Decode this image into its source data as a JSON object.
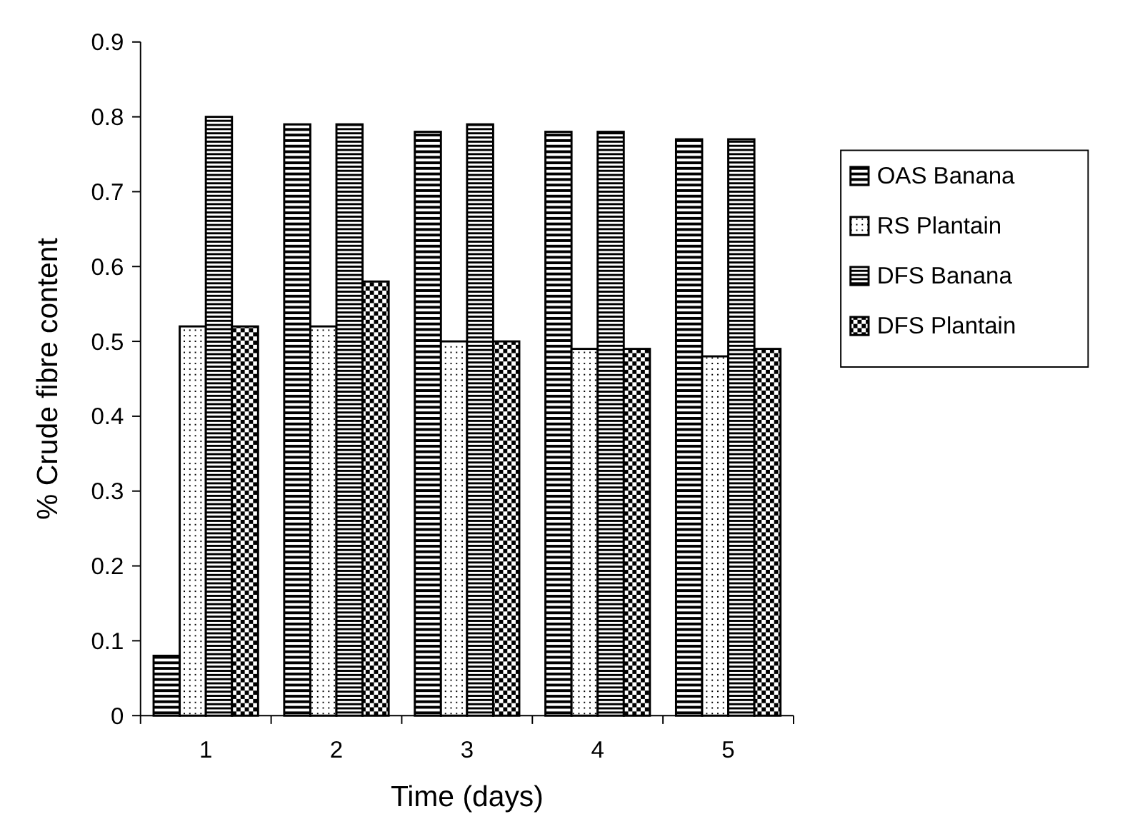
{
  "chart_data": {
    "type": "bar",
    "xlabel": "Time (days)",
    "ylabel": "% Crude fibre content",
    "categories": [
      "1",
      "2",
      "3",
      "4",
      "5"
    ],
    "series": [
      {
        "name": "OAS Banana",
        "color": "#000000",
        "values": [
          0.08,
          0.79,
          0.78,
          0.78,
          0.77
        ]
      },
      {
        "name": "RS Plantain",
        "color": "#000000",
        "values": [
          0.52,
          0.52,
          0.5,
          0.49,
          0.48
        ]
      },
      {
        "name": "DFS Banana",
        "color": "#000000",
        "values": [
          0.8,
          0.79,
          0.79,
          0.78,
          0.77
        ]
      },
      {
        "name": "DFS Plantain",
        "color": "#000000",
        "values": [
          0.52,
          0.58,
          0.5,
          0.49,
          0.49
        ]
      }
    ],
    "ylim": [
      0,
      0.9
    ],
    "yticks": [
      0,
      0.1,
      0.2,
      0.3,
      0.4,
      0.5,
      0.6,
      0.7,
      0.8,
      0.9
    ],
    "grid": false,
    "legend": "right"
  }
}
